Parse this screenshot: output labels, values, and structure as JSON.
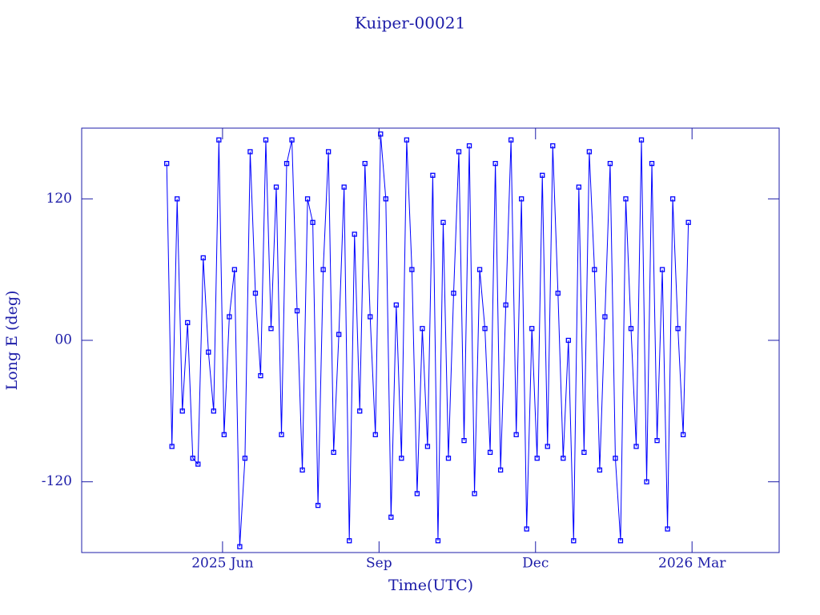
{
  "chart_data": {
    "type": "line",
    "title": "Kuiper-00021",
    "xlabel": "Time(UTC)",
    "ylabel": "Long E (deg)",
    "x": [
      4.93,
      5.03,
      5.13,
      5.23,
      5.33,
      5.43,
      5.53,
      5.63,
      5.73,
      5.83,
      5.93,
      6.03,
      6.13,
      6.23,
      6.33,
      6.43,
      6.53,
      6.63,
      6.73,
      6.83,
      6.93,
      7.03,
      7.13,
      7.23,
      7.33,
      7.43,
      7.53,
      7.63,
      7.73,
      7.83,
      7.93,
      8.03,
      8.13,
      8.23,
      8.33,
      8.43,
      8.53,
      8.63,
      8.73,
      8.83,
      8.93,
      9.03,
      9.13,
      9.23,
      9.33,
      9.43,
      9.53,
      9.63,
      9.73,
      9.83,
      9.93,
      10.03,
      10.13,
      10.23,
      10.33,
      10.43,
      10.53,
      10.63,
      10.73,
      10.83,
      10.93,
      11.03,
      11.13,
      11.23,
      11.33,
      11.43,
      11.53,
      11.63,
      11.73,
      11.83,
      11.93,
      12.03,
      12.13,
      12.23,
      12.33,
      12.43,
      12.53,
      12.63,
      12.73,
      12.83,
      12.93,
      13.03,
      13.13,
      13.23,
      13.33,
      13.43,
      13.53,
      13.63,
      13.73,
      13.83,
      13.93,
      14.03,
      14.13,
      14.23,
      14.33,
      14.43,
      14.53,
      14.63,
      14.73,
      14.83,
      14.93
    ],
    "series": [
      {
        "name": "Kuiper-00021",
        "color": "#0000ff",
        "values": [
          150,
          -90,
          120,
          -60,
          15,
          -100,
          -105,
          70,
          -10,
          -60,
          170,
          -80,
          20,
          60,
          -175,
          -100,
          160,
          40,
          -30,
          170,
          10,
          130,
          -80,
          150,
          170,
          25,
          -110,
          120,
          100,
          -140,
          60,
          160,
          -95,
          5,
          130,
          -170,
          90,
          -60,
          150,
          20,
          -80,
          175,
          120,
          -150,
          30,
          -100,
          170,
          60,
          -130,
          10,
          -90,
          140,
          -170,
          100,
          -100,
          40,
          160,
          -85,
          165,
          -130,
          60,
          10,
          -95,
          150,
          -110,
          30,
          170,
          -80,
          120,
          -160,
          10,
          -100,
          140,
          -90,
          165,
          40,
          -100,
          0,
          -170,
          130,
          -95,
          160,
          60,
          -110,
          20,
          150,
          -100,
          -170,
          120,
          10,
          -90,
          170,
          -120,
          150,
          -85,
          60,
          -160,
          120,
          10,
          -80,
          100
        ]
      }
    ],
    "xlim": [
      3.3,
      16.67
    ],
    "ylim": [
      -180,
      180
    ],
    "xticks": [
      {
        "value": 6,
        "label": "2025 Jun"
      },
      {
        "value": 9,
        "label": "Sep"
      },
      {
        "value": 12,
        "label": "Dec"
      },
      {
        "value": 15,
        "label": "2026 Mar"
      }
    ],
    "yticks": [
      -120,
      {
        "value": 0,
        "label": "00"
      },
      120
    ]
  }
}
